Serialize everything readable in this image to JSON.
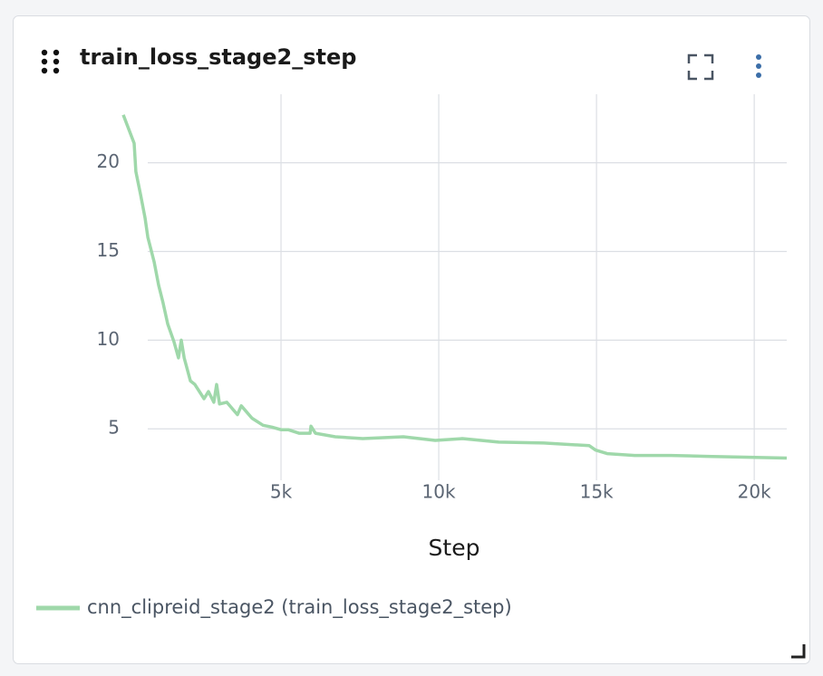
{
  "chart_data": {
    "type": "line",
    "title": "train_loss_stage2_step",
    "x_label": "Step",
    "grid": true,
    "xlim": [
      0,
      21030
    ],
    "ylim": [
      2.1,
      23.3
    ],
    "xticks": [
      {
        "value": 5000,
        "label": "5k"
      },
      {
        "value": 10000,
        "label": "10k"
      },
      {
        "value": 15000,
        "label": "15k"
      },
      {
        "value": 20000,
        "label": "20k"
      }
    ],
    "yticks": [
      5,
      10,
      15,
      20
    ],
    "x": [
      0,
      345,
      400,
      550,
      690,
      780,
      980,
      1120,
      1260,
      1410,
      1610,
      1750,
      1840,
      1930,
      2130,
      2270,
      2560,
      2700,
      2870,
      2960,
      3050,
      3280,
      3620,
      3740,
      4080,
      4430,
      4710,
      5000,
      5230,
      5570,
      5920,
      5950,
      6090,
      6720,
      7590,
      8880,
      9890,
      10750,
      11900,
      13330,
      14770,
      14970,
      15340,
      16210,
      17360,
      18510,
      21030
    ],
    "series": [
      {
        "name": "cnn_clipreid_stage2 (train_loss_stage2_step)",
        "color": "#9fd8aa",
        "values": [
          22.7,
          21.1,
          19.5,
          18.2,
          16.9,
          15.8,
          14.4,
          13.1,
          12.1,
          10.9,
          9.9,
          9.0,
          10.0,
          9.0,
          7.7,
          7.5,
          6.7,
          7.1,
          6.5,
          7.5,
          6.4,
          6.5,
          5.8,
          6.3,
          5.6,
          5.2,
          5.1,
          4.95,
          4.95,
          4.75,
          4.75,
          5.15,
          4.75,
          4.55,
          4.45,
          4.55,
          4.35,
          4.45,
          4.25,
          4.2,
          4.05,
          3.8,
          3.6,
          3.5,
          3.5,
          3.45,
          3.35
        ]
      }
    ]
  }
}
